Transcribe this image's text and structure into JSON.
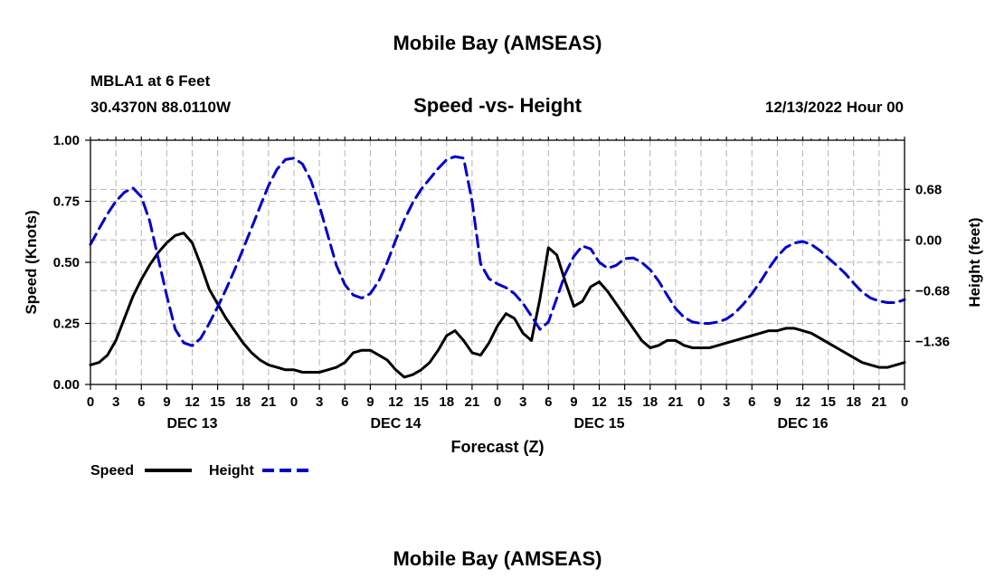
{
  "colors": {
    "speed": "#000000",
    "height": "#0000cc",
    "grid": "#b4b4b4",
    "background": "#ffffff"
  },
  "chart_data": {
    "type": "line",
    "title": "Mobile Bay (AMSEAS)",
    "footer_title": "Mobile Bay (AMSEAS)",
    "subtitle": "Speed -vs- Height",
    "station": "MBLA1 at 6 Feet",
    "coords": "30.4370N  88.0110W",
    "timestamp": "12/13/2022 Hour 00",
    "xlabel": "Forecast (Z)",
    "ylabel_left": "Speed (Knots)",
    "ylabel_right": "Height (feet)",
    "x_range_hours": [
      0,
      96
    ],
    "x_tick_labels": [
      "0",
      "3",
      "6",
      "9",
      "12",
      "15",
      "18",
      "21",
      "0",
      "3",
      "6",
      "9",
      "12",
      "15",
      "18",
      "21",
      "0",
      "3",
      "6",
      "9",
      "12",
      "15",
      "18",
      "21",
      "0",
      "3",
      "6",
      "9",
      "12",
      "15",
      "18",
      "21",
      "0"
    ],
    "day_labels": [
      "DEC 13",
      "DEC 14",
      "DEC 15",
      "DEC 16"
    ],
    "y_left": {
      "range": [
        0,
        1
      ],
      "ticks": [
        0,
        0.25,
        0.5,
        0.75,
        1
      ],
      "tick_labels": [
        "0.00",
        "0.25",
        "0.50",
        "0.75",
        "1.00"
      ]
    },
    "y_right": {
      "range": [
        -1.94,
        1.34
      ],
      "ticks": [
        -1.36,
        -0.68,
        0,
        0.68
      ],
      "tick_labels": [
        "−1.36",
        "−0.68",
        "0.00",
        "0.68"
      ]
    },
    "series": [
      {
        "name": "Speed",
        "axis": "left",
        "style": "solid",
        "x": [
          0,
          1,
          2,
          3,
          4,
          5,
          6,
          7,
          8,
          9,
          10,
          11,
          12,
          13,
          14,
          15,
          16,
          17,
          18,
          19,
          20,
          21,
          22,
          23,
          24,
          25,
          26,
          27,
          28,
          29,
          30,
          31,
          32,
          33,
          34,
          35,
          36,
          37,
          38,
          39,
          40,
          41,
          42,
          43,
          44,
          45,
          46,
          47,
          48,
          49,
          50,
          51,
          52,
          53,
          54,
          55,
          56,
          57,
          58,
          59,
          60,
          61,
          62,
          63,
          64,
          65,
          66,
          67,
          68,
          69,
          70,
          71,
          72,
          73,
          74,
          75,
          76,
          77,
          78,
          79,
          80,
          81,
          82,
          83,
          84,
          85,
          86,
          87,
          88,
          89,
          90,
          91,
          92,
          93,
          94,
          95,
          96
        ],
        "values": [
          0.08,
          0.09,
          0.12,
          0.18,
          0.27,
          0.36,
          0.43,
          0.49,
          0.54,
          0.58,
          0.61,
          0.62,
          0.58,
          0.49,
          0.39,
          0.33,
          0.27,
          0.22,
          0.17,
          0.13,
          0.1,
          0.08,
          0.07,
          0.06,
          0.06,
          0.05,
          0.05,
          0.05,
          0.06,
          0.07,
          0.09,
          0.13,
          0.14,
          0.14,
          0.12,
          0.1,
          0.06,
          0.03,
          0.04,
          0.06,
          0.09,
          0.14,
          0.2,
          0.22,
          0.18,
          0.13,
          0.12,
          0.17,
          0.24,
          0.29,
          0.27,
          0.21,
          0.18,
          0.35,
          0.56,
          0.53,
          0.42,
          0.32,
          0.34,
          0.4,
          0.42,
          0.38,
          0.33,
          0.28,
          0.23,
          0.18,
          0.15,
          0.16,
          0.18,
          0.18,
          0.16,
          0.15,
          0.15,
          0.15,
          0.16,
          0.17,
          0.18,
          0.19,
          0.2,
          0.21,
          0.22,
          0.22,
          0.23,
          0.23,
          0.22,
          0.21,
          0.19,
          0.17,
          0.15,
          0.13,
          0.11,
          0.09,
          0.08,
          0.07,
          0.07,
          0.08,
          0.09
        ]
      },
      {
        "name": "Height",
        "axis": "right",
        "style": "dashed",
        "x": [
          0,
          1,
          2,
          3,
          4,
          5,
          6,
          7,
          8,
          9,
          10,
          11,
          12,
          13,
          14,
          15,
          16,
          17,
          18,
          19,
          20,
          21,
          22,
          23,
          24,
          25,
          26,
          27,
          28,
          29,
          30,
          31,
          32,
          33,
          34,
          35,
          36,
          37,
          38,
          39,
          40,
          41,
          42,
          43,
          44,
          45,
          46,
          47,
          48,
          49,
          50,
          51,
          52,
          53,
          54,
          55,
          56,
          57,
          58,
          59,
          60,
          61,
          62,
          63,
          64,
          65,
          66,
          67,
          68,
          69,
          70,
          71,
          72,
          73,
          74,
          75,
          76,
          77,
          78,
          79,
          80,
          81,
          82,
          83,
          84,
          85,
          86,
          87,
          88,
          89,
          90,
          91,
          92,
          93,
          94,
          95,
          96
        ],
        "values": [
          -0.06,
          0.15,
          0.35,
          0.52,
          0.64,
          0.7,
          0.58,
          0.25,
          -0.25,
          -0.75,
          -1.2,
          -1.38,
          -1.42,
          -1.32,
          -1.12,
          -0.9,
          -0.66,
          -0.4,
          -0.12,
          0.16,
          0.45,
          0.73,
          0.95,
          1.08,
          1.1,
          1.02,
          0.8,
          0.46,
          0.06,
          -0.34,
          -0.6,
          -0.74,
          -0.78,
          -0.72,
          -0.55,
          -0.3,
          0.0,
          0.27,
          0.5,
          0.68,
          0.82,
          0.96,
          1.08,
          1.12,
          1.1,
          0.52,
          -0.32,
          -0.52,
          -0.59,
          -0.64,
          -0.72,
          -0.85,
          -1.02,
          -1.2,
          -1.1,
          -0.78,
          -0.45,
          -0.22,
          -0.08,
          -0.12,
          -0.3,
          -0.38,
          -0.34,
          -0.25,
          -0.24,
          -0.3,
          -0.4,
          -0.55,
          -0.74,
          -0.92,
          -1.04,
          -1.1,
          -1.12,
          -1.12,
          -1.1,
          -1.06,
          -0.98,
          -0.86,
          -0.72,
          -0.56,
          -0.38,
          -0.22,
          -0.1,
          -0.04,
          -0.02,
          -0.06,
          -0.14,
          -0.24,
          -0.34,
          -0.45,
          -0.58,
          -0.7,
          -0.78,
          -0.82,
          -0.84,
          -0.84,
          -0.8
        ]
      }
    ],
    "legend": [
      {
        "label": "Speed",
        "style": "solid"
      },
      {
        "label": "Height",
        "style": "dashed"
      }
    ],
    "legend_position": "bottom-left",
    "grid": true
  }
}
